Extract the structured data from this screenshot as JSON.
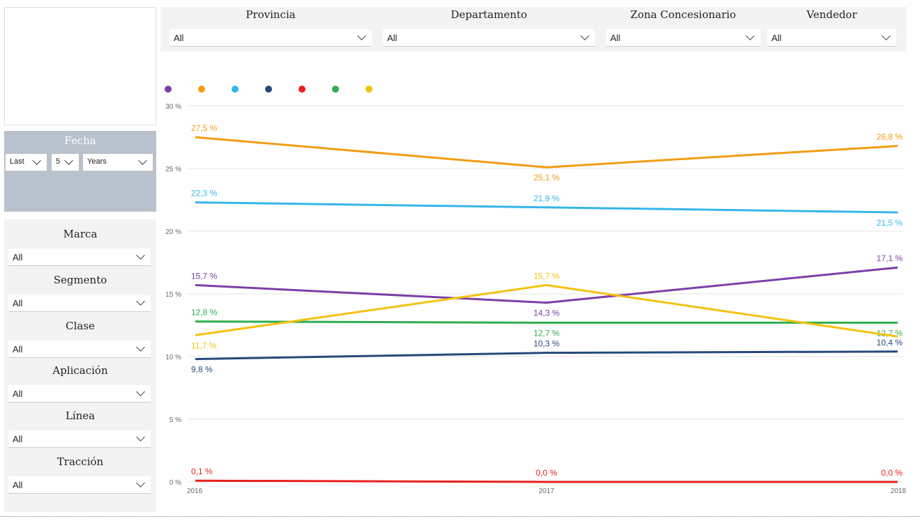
{
  "filters_top": [
    {
      "label": "Provincia",
      "value": "All"
    },
    {
      "label": "Departamento",
      "value": "All"
    },
    {
      "label": "Zona Concesionario",
      "value": "All"
    },
    {
      "label": "Vendedor",
      "value": "All"
    }
  ],
  "date_filter": {
    "title": "Fecha",
    "mode": "Last",
    "count": "5",
    "unit": "Years"
  },
  "filters_left": [
    {
      "label": "Marca",
      "value": "All"
    },
    {
      "label": "Segmento",
      "value": "All"
    },
    {
      "label": "Clase",
      "value": "All"
    },
    {
      "label": "Aplicación",
      "value": "All"
    },
    {
      "label": "Línea",
      "value": "All"
    },
    {
      "label": "Tracción",
      "value": "All"
    }
  ],
  "chart_data": {
    "type": "line",
    "categories": [
      "2016",
      "2017",
      "2018"
    ],
    "ylim": [
      0,
      30
    ],
    "yticks": [
      {
        "value": 0,
        "label": "0 %"
      },
      {
        "value": 5,
        "label": "5 %"
      },
      {
        "value": 10,
        "label": "10 %"
      },
      {
        "value": 15,
        "label": "15 %"
      },
      {
        "value": 20,
        "label": "20 %"
      },
      {
        "value": 25,
        "label": "25 %"
      },
      {
        "value": 30,
        "label": "30 %"
      }
    ],
    "grid": true,
    "series": [
      {
        "color": "#7b3fa6",
        "values": [
          15.7,
          14.3,
          17.1
        ],
        "value_labels": [
          "15,7 %",
          "14,3 %",
          "17,1 %"
        ]
      },
      {
        "color": "#f39c12",
        "values": [
          27.5,
          25.1,
          26.8
        ],
        "value_labels": [
          "27,5 %",
          "25,1 %",
          "26,8 %"
        ]
      },
      {
        "color": "#35b5ea",
        "values": [
          22.3,
          21.9,
          21.5
        ],
        "value_labels": [
          "22,3 %",
          "21,9 %",
          "21,5 %"
        ]
      },
      {
        "color": "#26497a",
        "values": [
          9.8,
          10.3,
          10.4
        ],
        "value_labels": [
          "9,8 %",
          "10,3 %",
          "10,4 %"
        ]
      },
      {
        "color": "#e8201f",
        "values": [
          0.1,
          0.0,
          0.0
        ],
        "value_labels": [
          "0,1 %",
          "0,0 %",
          "0,0 %"
        ]
      },
      {
        "color": "#2fae4e",
        "values": [
          12.8,
          12.7,
          12.7
        ],
        "value_labels": [
          "12,8 %",
          "12,7 %",
          "12,7 %"
        ]
      },
      {
        "color": "#f4c20d",
        "values": [
          11.7,
          15.7,
          11.6
        ],
        "value_labels": [
          "11,7 %",
          "15,7 %",
          null
        ]
      }
    ]
  }
}
